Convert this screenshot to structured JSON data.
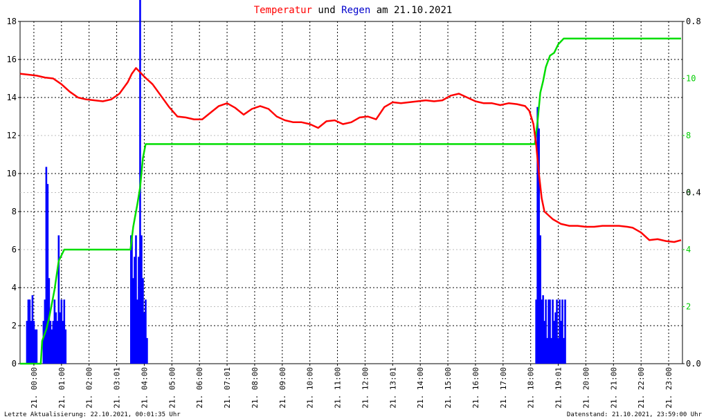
{
  "title": {
    "part1": "Temperatur",
    "part2": " und ",
    "part3": "Regen",
    "part4": " am 21.10.2021",
    "color1": "#ff0000",
    "color3": "#0000cc"
  },
  "footer": {
    "left": "Letzte Aktualisierung: 22.10.2021, 00:01:35 Uhr",
    "right": "Datenstand: 21.10.2021, 23:59:00 Uhr"
  },
  "chart_data": {
    "type": "line",
    "x_unit": "hour",
    "xlim": [
      0,
      24
    ],
    "ylim_left": [
      0,
      18
    ],
    "ylim_right_green": [
      0,
      12
    ],
    "ylim_right_rain": [
      0,
      0.8
    ],
    "yticks_left": [
      "0",
      "2",
      "4",
      "6",
      "8",
      "10",
      "12",
      "14",
      "16",
      "18"
    ],
    "yticks_right_green": [
      "0",
      "2",
      "4",
      "6",
      "8",
      "10"
    ],
    "yticks_right_rain": [
      "0.0",
      "0.4",
      "0.8"
    ],
    "xticks": [
      "21. 00:00",
      "21. 01:00",
      "21. 02:00",
      "21. 03:01",
      "21. 04:00",
      "21. 05:00",
      "21. 06:00",
      "21. 07:01",
      "21. 08:00",
      "21. 09:00",
      "21. 10:00",
      "21. 11:00",
      "21. 12:00",
      "21. 13:01",
      "21. 14:00",
      "21. 15:00",
      "21. 16:00",
      "21. 17:00",
      "21. 18:00",
      "21. 19:01",
      "21. 20:00",
      "21. 21:00",
      "21. 22:00",
      "21. 23:00"
    ],
    "colors": {
      "temperature": "#ff0000",
      "rain": "#0000ff",
      "rain_total": "#00dd00"
    },
    "series": [
      {
        "name": "Temperatur",
        "axis": "left",
        "x": [
          0,
          0.3,
          0.6,
          0.9,
          1.2,
          1.5,
          1.8,
          2.1,
          2.4,
          2.7,
          3.0,
          3.3,
          3.6,
          3.9,
          4.05,
          4.2,
          4.5,
          4.8,
          5.1,
          5.4,
          5.7,
          6.0,
          6.3,
          6.6,
          6.9,
          7.2,
          7.5,
          7.8,
          8.1,
          8.4,
          8.7,
          9.0,
          9.3,
          9.6,
          9.9,
          10.2,
          10.5,
          10.8,
          11.1,
          11.4,
          11.7,
          12.0,
          12.3,
          12.6,
          12.9,
          13.2,
          13.5,
          13.8,
          14.1,
          14.4,
          14.7,
          15.0,
          15.3,
          15.6,
          15.9,
          16.2,
          16.5,
          16.8,
          17.1,
          17.4,
          17.7,
          18.0,
          18.3,
          18.45,
          18.6,
          18.7,
          18.8,
          18.9,
          19.0,
          19.3,
          19.6,
          19.9,
          20.2,
          20.5,
          20.8,
          21.1,
          21.4,
          21.7,
          22.0,
          22.2,
          22.5,
          22.8,
          23.1,
          23.4,
          23.7,
          23.95
        ],
        "values": [
          15.25,
          15.2,
          15.15,
          15.05,
          15.0,
          14.7,
          14.3,
          14.0,
          13.9,
          13.85,
          13.8,
          13.9,
          14.2,
          14.8,
          15.25,
          15.55,
          15.1,
          14.7,
          14.1,
          13.5,
          13.0,
          12.95,
          12.85,
          12.85,
          13.2,
          13.55,
          13.7,
          13.45,
          13.1,
          13.4,
          13.55,
          13.4,
          13.0,
          12.8,
          12.7,
          12.7,
          12.6,
          12.4,
          12.75,
          12.8,
          12.6,
          12.7,
          12.95,
          13.0,
          12.85,
          13.5,
          13.75,
          13.7,
          13.75,
          13.8,
          13.85,
          13.8,
          13.85,
          14.1,
          14.2,
          14.0,
          13.8,
          13.7,
          13.7,
          13.6,
          13.7,
          13.65,
          13.55,
          13.3,
          12.6,
          11.5,
          10.0,
          8.7,
          8.0,
          7.6,
          7.35,
          7.25,
          7.25,
          7.2,
          7.2,
          7.25,
          7.25,
          7.25,
          7.2,
          7.15,
          6.9,
          6.5,
          6.55,
          6.45,
          6.4,
          6.5
        ]
      },
      {
        "name": "Regen Summe",
        "axis": "right_green",
        "x": [
          0,
          0.75,
          0.8,
          0.95,
          1.05,
          1.15,
          1.25,
          1.4,
          1.6,
          4.0,
          4.1,
          4.25,
          4.35,
          4.45,
          4.55,
          18.65,
          18.75,
          18.85,
          18.95,
          19.05,
          19.2,
          19.35,
          19.5,
          19.7,
          23.95
        ],
        "values": [
          0,
          0,
          0.8,
          1.2,
          1.6,
          2.1,
          2.6,
          3.6,
          4.0,
          4.0,
          4.8,
          5.6,
          6.2,
          7.2,
          7.7,
          7.7,
          8.5,
          9.5,
          9.9,
          10.4,
          10.8,
          10.9,
          11.2,
          11.4,
          11.4
        ]
      },
      {
        "name": "Regen",
        "axis": "right_rain",
        "x": [
          0.25,
          0.3,
          0.35,
          0.4,
          0.45,
          0.5,
          0.55,
          0.6,
          0.85,
          0.9,
          0.95,
          1.0,
          1.05,
          1.1,
          1.15,
          1.2,
          1.25,
          1.3,
          1.35,
          1.4,
          1.45,
          1.5,
          1.55,
          1.6,
          1.65,
          4.02,
          4.05,
          4.1,
          4.15,
          4.2,
          4.25,
          4.3,
          4.35,
          4.4,
          4.45,
          4.5,
          4.55,
          4.6,
          18.7,
          18.75,
          18.8,
          18.85,
          18.9,
          18.95,
          19.0,
          19.05,
          19.1,
          19.15,
          19.2,
          19.25,
          19.3,
          19.35,
          19.4,
          19.45,
          19.5,
          19.55,
          19.6,
          19.65,
          19.7,
          19.75
        ],
        "values": [
          0.1,
          0.15,
          0.15,
          0.1,
          0.16,
          0.1,
          0.08,
          0.08,
          0.1,
          0.15,
          0.46,
          0.42,
          0.2,
          0.1,
          0.08,
          0.1,
          0.15,
          0.12,
          0.1,
          0.3,
          0.12,
          0.15,
          0.1,
          0.15,
          0.08,
          0.3,
          0.3,
          0.2,
          0.25,
          0.3,
          0.15,
          0.25,
          1.07,
          0.3,
          0.2,
          0.12,
          0.15,
          0.06,
          0.15,
          0.6,
          0.55,
          0.3,
          0.15,
          0.16,
          0.1,
          0.15,
          0.06,
          0.15,
          0.15,
          0.06,
          0.15,
          0.1,
          0.12,
          0.15,
          0.06,
          0.15,
          0.1,
          0.15,
          0.06,
          0.15
        ]
      }
    ]
  }
}
